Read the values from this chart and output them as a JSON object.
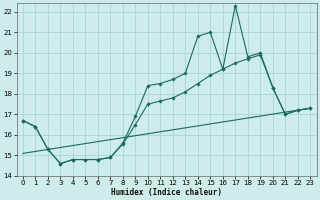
{
  "xlabel": "Humidex (Indice chaleur)",
  "bg_color": "#ceecea",
  "grid_color": "#aad4d0",
  "line_color": "#1a6b5a",
  "xlim": [
    -0.5,
    23.5
  ],
  "ylim": [
    14,
    22.4
  ],
  "yticks": [
    14,
    15,
    16,
    17,
    18,
    19,
    20,
    21,
    22
  ],
  "xticks": [
    0,
    1,
    2,
    3,
    4,
    5,
    6,
    7,
    8,
    9,
    10,
    11,
    12,
    13,
    14,
    15,
    16,
    17,
    18,
    19,
    20,
    21,
    22,
    23
  ],
  "series1_x": [
    0,
    1,
    2,
    3,
    4,
    5,
    6,
    7,
    8,
    9,
    10,
    11,
    12,
    13,
    14,
    15,
    16,
    17,
    18,
    19,
    20,
    21,
    22,
    23
  ],
  "series1_y": [
    16.7,
    16.4,
    15.3,
    14.6,
    14.8,
    14.8,
    14.8,
    14.9,
    15.6,
    16.9,
    18.4,
    18.5,
    18.7,
    19.0,
    20.8,
    21.0,
    19.2,
    22.3,
    19.8,
    20.0,
    18.3,
    17.0,
    17.2,
    17.3
  ],
  "series2_x": [
    0,
    1,
    2,
    3,
    4,
    5,
    6,
    7,
    8,
    9,
    10,
    11,
    12,
    13,
    14,
    15,
    16,
    17,
    18,
    19,
    20,
    21,
    22,
    23
  ],
  "series2_y": [
    16.7,
    16.4,
    15.3,
    14.6,
    14.8,
    14.8,
    14.8,
    14.9,
    15.55,
    16.5,
    17.5,
    17.65,
    17.8,
    18.1,
    18.5,
    18.9,
    19.2,
    19.5,
    19.7,
    19.9,
    18.3,
    17.0,
    17.2,
    17.3
  ],
  "series3_x": [
    0,
    23
  ],
  "series3_y": [
    15.1,
    17.3
  ]
}
